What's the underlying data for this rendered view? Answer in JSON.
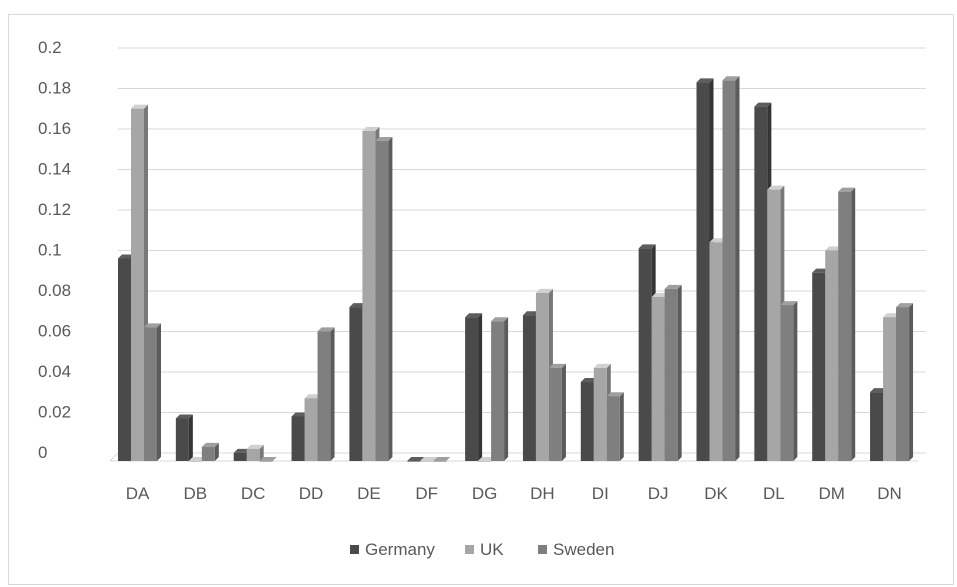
{
  "chart_data": {
    "type": "bar",
    "style": "3d-clustered-column",
    "title": "",
    "xlabel": "",
    "ylabel": "",
    "categories": [
      "DA",
      "DB",
      "DC",
      "DD",
      "DE",
      "DF",
      "DG",
      "DH",
      "DI",
      "DJ",
      "DK",
      "DL",
      "DM",
      "DN"
    ],
    "series": [
      {
        "name": "Germany",
        "color": "#4a4a4a",
        "values": [
          0.1,
          0.021,
          0.004,
          0.022,
          0.076,
          0.0,
          0.071,
          0.072,
          0.039,
          0.105,
          0.187,
          0.175,
          0.093,
          0.034
        ]
      },
      {
        "name": "UK",
        "color": "#a6a6a6",
        "values": [
          0.174,
          0.0,
          0.006,
          0.031,
          0.163,
          0.0,
          0.0,
          0.083,
          0.046,
          0.081,
          0.108,
          0.134,
          0.104,
          0.071
        ]
      },
      {
        "name": "Sweden",
        "color": "#7f7f7f",
        "values": [
          0.066,
          0.007,
          0.0,
          0.064,
          0.158,
          0.0,
          0.069,
          0.046,
          0.032,
          0.085,
          0.188,
          0.077,
          0.133,
          0.076
        ]
      }
    ],
    "ylim": [
      0,
      0.2
    ],
    "yticks": [
      "0",
      "0.02",
      "0.04",
      "0.06",
      "0.08",
      "0.1",
      "0.12",
      "0.14",
      "0.16",
      "0.18",
      "0.2"
    ],
    "grid": true,
    "legend": "bottom"
  }
}
